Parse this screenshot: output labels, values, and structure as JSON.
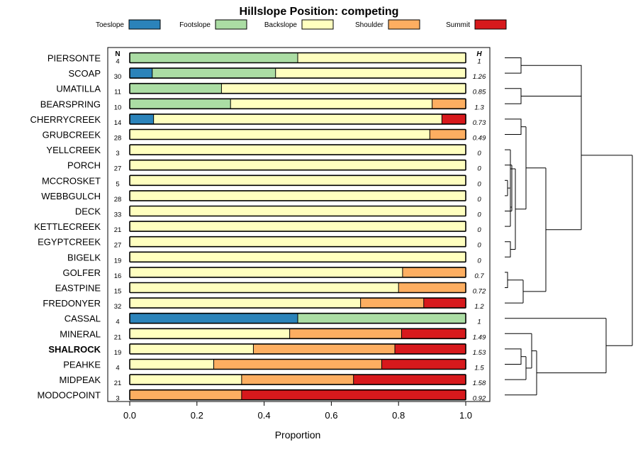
{
  "chart_data": {
    "type": "bar",
    "orientation": "horizontal",
    "stacked": true,
    "title": "Hillslope Position: competing",
    "xlabel": "Proportion",
    "ylabel": "",
    "xlim": [
      0,
      1
    ],
    "xticks": [
      "0.0",
      "0.2",
      "0.4",
      "0.6",
      "0.8",
      "1.0"
    ],
    "legend_position": "top",
    "n_header": "N",
    "h_header": "H",
    "highlighted_category": "SHALROCK",
    "series": [
      {
        "name": "Toeslope",
        "color": "#2b83ba"
      },
      {
        "name": "Footslope",
        "color": "#abdda4"
      },
      {
        "name": "Backslope",
        "color": "#ffffbf"
      },
      {
        "name": "Shoulder",
        "color": "#fdae61"
      },
      {
        "name": "Summit",
        "color": "#d7191c"
      }
    ],
    "categories": [
      "PIERSONTE",
      "SCOAP",
      "UMATILLA",
      "BEARSPRING",
      "CHERRYCREEK",
      "GRUBCREEK",
      "YELLCREEK",
      "PORCH",
      "MCCROSKET",
      "WEBBGULCH",
      "DECK",
      "KETTLECREEK",
      "EGYPTCREEK",
      "BIGELK",
      "GOLFER",
      "EASTPINE",
      "FREDONYER",
      "CASSAL",
      "MINERAL",
      "SHALROCK",
      "PEAHKE",
      "MIDPEAK",
      "MODOCPOINT"
    ],
    "n": [
      "4",
      "30",
      "11",
      "10",
      "14",
      "28",
      "3",
      "27",
      "5",
      "28",
      "33",
      "21",
      "27",
      "19",
      "16",
      "15",
      "32",
      "4",
      "21",
      "19",
      "4",
      "21",
      "3"
    ],
    "h": [
      "1",
      "1.26",
      "0.85",
      "1.3",
      "0.73",
      "0.49",
      "0",
      "0",
      "0",
      "0",
      "0",
      "0",
      "0",
      "0",
      "0.7",
      "0.72",
      "1.2",
      "1",
      "1.49",
      "1.53",
      "1.5",
      "1.58",
      "0.92"
    ],
    "values": [
      [
        0,
        0.5,
        0.5,
        0,
        0
      ],
      [
        0.067,
        0.367,
        0.566,
        0,
        0
      ],
      [
        0,
        0.273,
        0.727,
        0,
        0
      ],
      [
        0,
        0.3,
        0.6,
        0.1,
        0
      ],
      [
        0.071,
        0,
        0.858,
        0,
        0.071
      ],
      [
        0,
        0,
        0.893,
        0.107,
        0
      ],
      [
        0,
        0,
        1,
        0,
        0
      ],
      [
        0,
        0,
        1,
        0,
        0
      ],
      [
        0,
        0,
        1,
        0,
        0
      ],
      [
        0,
        0,
        1,
        0,
        0
      ],
      [
        0,
        0,
        1,
        0,
        0
      ],
      [
        0,
        0,
        1,
        0,
        0
      ],
      [
        0,
        0,
        1,
        0,
        0
      ],
      [
        0,
        0,
        1,
        0,
        0
      ],
      [
        0,
        0,
        0.812,
        0.188,
        0
      ],
      [
        0,
        0,
        0.8,
        0.2,
        0
      ],
      [
        0,
        0,
        0.687,
        0.188,
        0.125
      ],
      [
        0.5,
        0.5,
        0,
        0,
        0
      ],
      [
        0,
        0,
        0.476,
        0.333,
        0.191
      ],
      [
        0,
        0,
        0.368,
        0.421,
        0.211
      ],
      [
        0,
        0,
        0.25,
        0.5,
        0.25
      ],
      [
        0,
        0,
        0.333,
        0.333,
        0.334
      ],
      [
        0,
        0,
        0,
        0.333,
        0.667
      ]
    ]
  }
}
